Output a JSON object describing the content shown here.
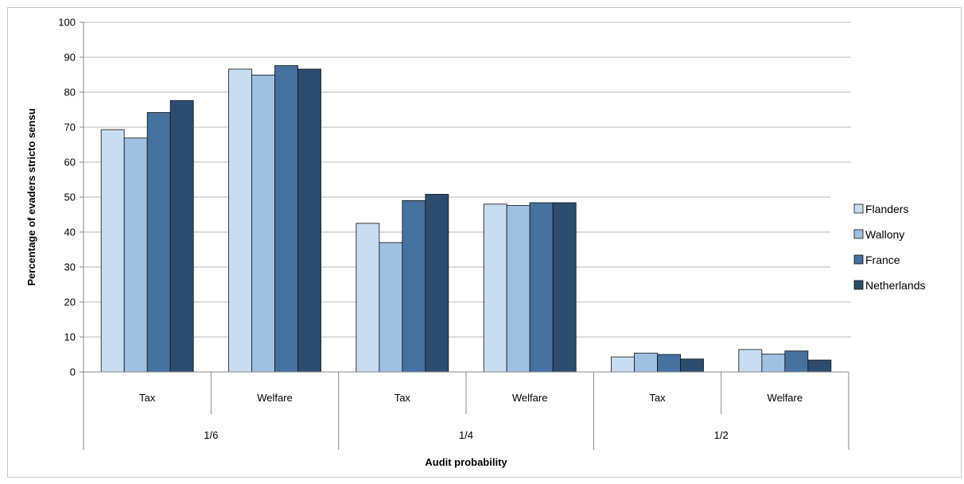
{
  "chart_data": {
    "type": "bar",
    "title": "",
    "ylabel": "Percentage of evaders stricto sensu",
    "xlabel": "Audit probability",
    "ylim": [
      0,
      100
    ],
    "yticks": [
      0,
      10,
      20,
      30,
      40,
      50,
      60,
      70,
      80,
      90,
      100
    ],
    "grid": true,
    "legend_position": "right",
    "groups": [
      {
        "label": "1/6",
        "categories": [
          "Tax",
          "Welfare"
        ]
      },
      {
        "label": "1/4",
        "categories": [
          "Tax",
          "Welfare"
        ]
      },
      {
        "label": "1/2",
        "categories": [
          "Tax",
          "Welfare"
        ]
      }
    ],
    "categories": [
      "1/6 Tax",
      "1/6 Welfare",
      "1/4 Tax",
      "1/4 Welfare",
      "1/2 Tax",
      "1/2 Welfare"
    ],
    "series": [
      {
        "name": "Flanders",
        "color": "#c9dcf0",
        "values": [
          69.3,
          86.6,
          42.5,
          48.0,
          4.3,
          6.4
        ]
      },
      {
        "name": "Wallony",
        "color": "#a1bfdf",
        "values": [
          66.9,
          84.9,
          37.0,
          47.6,
          5.4,
          5.1
        ]
      },
      {
        "name": "France",
        "color": "#45719f",
        "values": [
          74.2,
          87.6,
          49.0,
          48.4,
          5.0,
          6.0
        ]
      },
      {
        "name": "Netherlands",
        "color": "#2e4c6e",
        "values": [
          77.6,
          86.6,
          50.8,
          48.4,
          3.7,
          3.4
        ]
      }
    ]
  }
}
